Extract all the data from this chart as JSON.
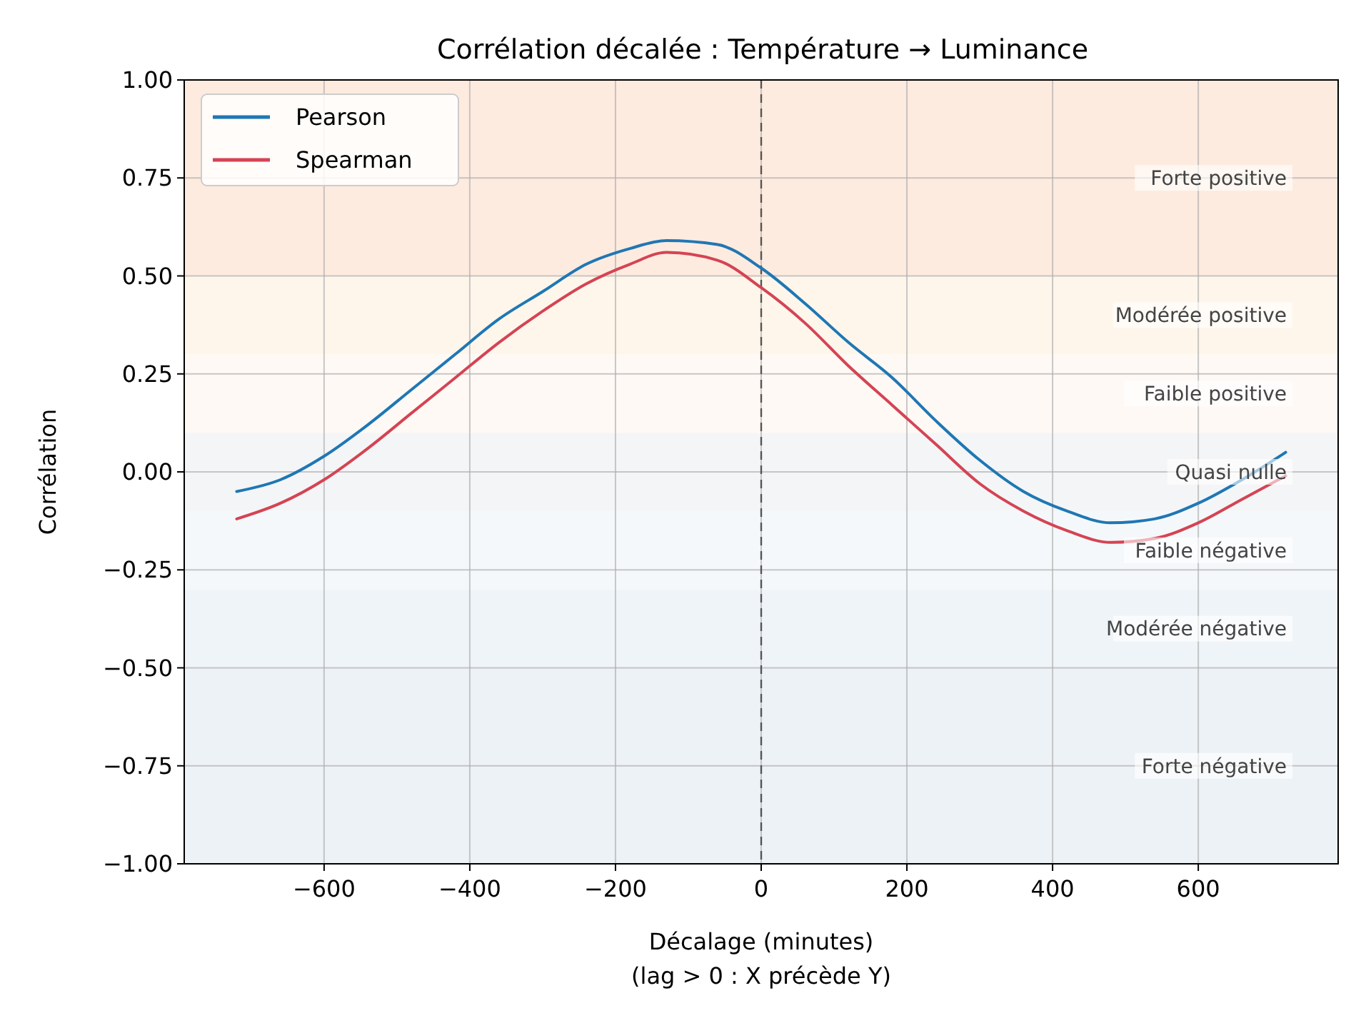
{
  "chart_data": {
    "type": "line",
    "title": "Corrélation décalée : Température → Luminance",
    "xlabel": "Décalage (minutes)\n(lag > 0 : X précède Y)",
    "ylabel": "Corrélation",
    "x": [
      -720,
      -660,
      -600,
      -540,
      -480,
      -420,
      -360,
      -300,
      -240,
      -180,
      -130,
      -60,
      0,
      60,
      120,
      180,
      240,
      300,
      360,
      420,
      480,
      540,
      600,
      660,
      720
    ],
    "series": [
      {
        "name": "Pearson",
        "color": "#1f77b4",
        "values": [
          -0.05,
          -0.02,
          0.04,
          0.12,
          0.21,
          0.3,
          0.39,
          0.46,
          0.53,
          0.57,
          0.59,
          0.58,
          0.52,
          0.43,
          0.33,
          0.24,
          0.13,
          0.03,
          -0.05,
          -0.1,
          -0.13,
          -0.12,
          -0.08,
          -0.02,
          0.05
        ]
      },
      {
        "name": "Spearman",
        "color": "#d44454",
        "values": [
          -0.12,
          -0.08,
          -0.02,
          0.06,
          0.15,
          0.24,
          0.33,
          0.41,
          0.48,
          0.53,
          0.56,
          0.54,
          0.47,
          0.38,
          0.27,
          0.17,
          0.07,
          -0.03,
          -0.1,
          -0.15,
          -0.18,
          -0.17,
          -0.13,
          -0.07,
          -0.01
        ]
      }
    ],
    "xlim": [
      -792,
      792
    ],
    "ylim": [
      -1,
      1
    ],
    "xticks": [
      {
        "value": -600,
        "label": "−600"
      },
      {
        "value": -400,
        "label": "−400"
      },
      {
        "value": -200,
        "label": "−200"
      },
      0,
      200,
      400,
      600
    ],
    "yticks": [
      {
        "value": -1,
        "label": "−1.00"
      },
      {
        "value": -0.75,
        "label": "−0.75"
      },
      {
        "value": -0.5,
        "label": "−0.50"
      },
      {
        "value": -0.25,
        "label": "−0.25"
      },
      {
        "value": 0,
        "label": "0.00"
      },
      {
        "value": 0.25,
        "label": "0.25"
      },
      {
        "value": 0.5,
        "label": "0.50"
      },
      {
        "value": 0.75,
        "label": "0.75"
      },
      {
        "value": 1,
        "label": "1.00"
      }
    ],
    "bands": [
      {
        "axis": "y",
        "from": -1,
        "to": -0.5,
        "label": "Forte négative",
        "color": "#edf2f7"
      },
      {
        "axis": "y",
        "from": -0.5,
        "to": -0.3,
        "label": "Modérée négative",
        "color": "#eff4f8"
      },
      {
        "axis": "y",
        "from": -0.3,
        "to": -0.1,
        "label": "Faible négative",
        "color": "#f5f8fa"
      },
      {
        "axis": "y",
        "from": -0.1,
        "to": 0.1,
        "label": "Quasi nulle",
        "color": "#f4f5f7"
      },
      {
        "axis": "y",
        "from": 0.1,
        "to": 0.3,
        "label": "Faible positive",
        "color": "#fff9f5"
      },
      {
        "axis": "y",
        "from": 0.3,
        "to": 0.5,
        "label": "Modérée positive",
        "color": "#fff6eb"
      },
      {
        "axis": "y",
        "from": 0.5,
        "to": 1,
        "label": "Forte positive",
        "color": "#feebdf"
      }
    ],
    "ref_lines": [
      {
        "axis": "x",
        "value": 0,
        "color": "#555555",
        "line_style": "dashed"
      }
    ],
    "grid": true,
    "legend": "top left",
    "marker": "none",
    "line_style": "solid"
  }
}
